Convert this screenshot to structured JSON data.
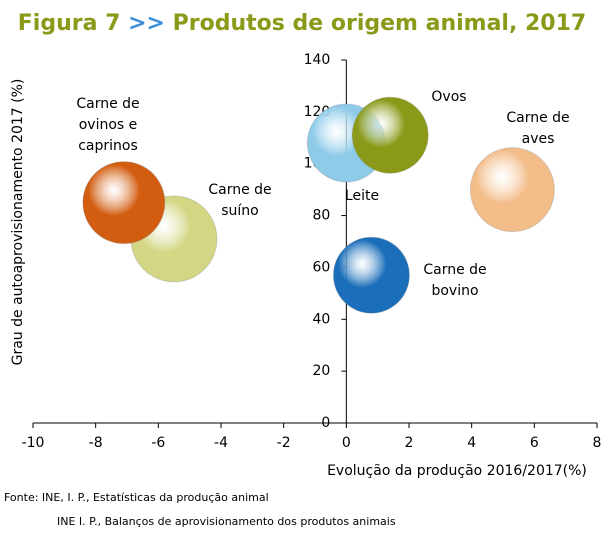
{
  "chart_data": {
    "type": "bubble",
    "title_prefix": "Figura 7",
    "title_separator": ">>",
    "title": "Produtos de origem animal, 2017",
    "x_label": "Evolução da produção  2016/2017(%)",
    "y_label": "Grau de autoaprovisionamento  2017 (%)",
    "xlim": [
      -10,
      8
    ],
    "xticks": [
      -10,
      -8,
      -6,
      -4,
      -2,
      0,
      2,
      4,
      6,
      8
    ],
    "ylim": [
      0,
      140
    ],
    "yticks": [
      0,
      20,
      40,
      60,
      80,
      100,
      120,
      140
    ],
    "points": [
      {
        "label": [
          "Carne de",
          "suíno"
        ],
        "x": -5.5,
        "y": 71,
        "color": "#d3d683"
      },
      {
        "label": [
          "Carne de",
          "ovinos e",
          "caprinos"
        ],
        "x": -7.1,
        "y": 85,
        "color": "#d25c0f"
      },
      {
        "label": [
          "Leite"
        ],
        "x": 0,
        "y": 108,
        "color": "#8ecbe9"
      },
      {
        "label": [
          "Ovos"
        ],
        "x": 1.4,
        "y": 111,
        "color": "#8a9a18"
      },
      {
        "label": [
          "Carne de",
          "aves"
        ],
        "x": 5.3,
        "y": 90,
        "color": "#f3bd8a"
      },
      {
        "label": [
          "Carne de",
          "bovino"
        ],
        "x": 0.8,
        "y": 57,
        "color": "#1b6fba"
      }
    ],
    "source": [
      "Fonte: INE, I. P., Estatísticas da produção animal",
      "INE I. P., Balanços de aprovisionamento dos produtos animais"
    ]
  }
}
